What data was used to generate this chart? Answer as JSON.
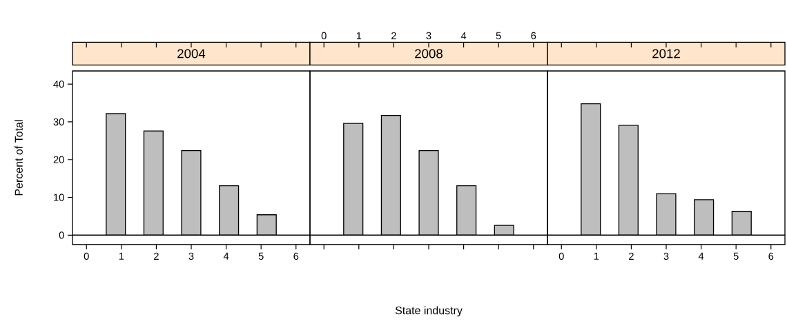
{
  "chart_data": [
    {
      "type": "bar",
      "title": "2004",
      "x": [
        0.84,
        1.92,
        3.0,
        4.08,
        5.16
      ],
      "values": [
        32.2,
        27.6,
        22.4,
        13.1,
        5.4
      ],
      "color": "#bebebe",
      "xlim": [
        -0.4,
        6.4
      ],
      "xticks": [
        0,
        1,
        2,
        3,
        4,
        5,
        6
      ],
      "ylim": [
        -2.5,
        43.5
      ],
      "yticks": [
        0,
        10,
        20,
        30,
        40
      ],
      "ylabel": "Percent of Total",
      "ref_lines": [
        {
          "axis": "y",
          "value": 0
        }
      ]
    },
    {
      "type": "bar",
      "title": "2008",
      "x": [
        0.84,
        1.92,
        3.0,
        4.08,
        5.16
      ],
      "values": [
        29.6,
        31.7,
        22.4,
        13.1,
        2.6
      ],
      "color": "#bebebe",
      "xlim": [
        -0.4,
        6.4
      ],
      "x2lim": [
        -0.4,
        6.4
      ],
      "x2ticks": [
        0,
        1,
        2,
        3,
        4,
        5,
        6
      ],
      "ylim": [
        -2.5,
        43.5
      ],
      "xlabel": "State industry",
      "tick_labels": "x",
      "ref_lines": [
        {
          "axis": "y",
          "value": 0
        }
      ]
    },
    {
      "type": "bar",
      "title": "2012",
      "x": [
        0.84,
        1.92,
        3.0,
        4.08,
        5.16
      ],
      "values": [
        34.8,
        29.1,
        11.0,
        9.4,
        6.3
      ],
      "color": "#bebebe",
      "xlim": [
        -0.4,
        6.4
      ],
      "xticks": [
        0,
        1,
        2,
        3,
        4,
        5,
        6
      ],
      "ylim": [
        -2.5,
        43.5
      ],
      "tick_labels": "x",
      "ref_lines": [
        {
          "axis": "y",
          "value": 0
        }
      ]
    }
  ]
}
